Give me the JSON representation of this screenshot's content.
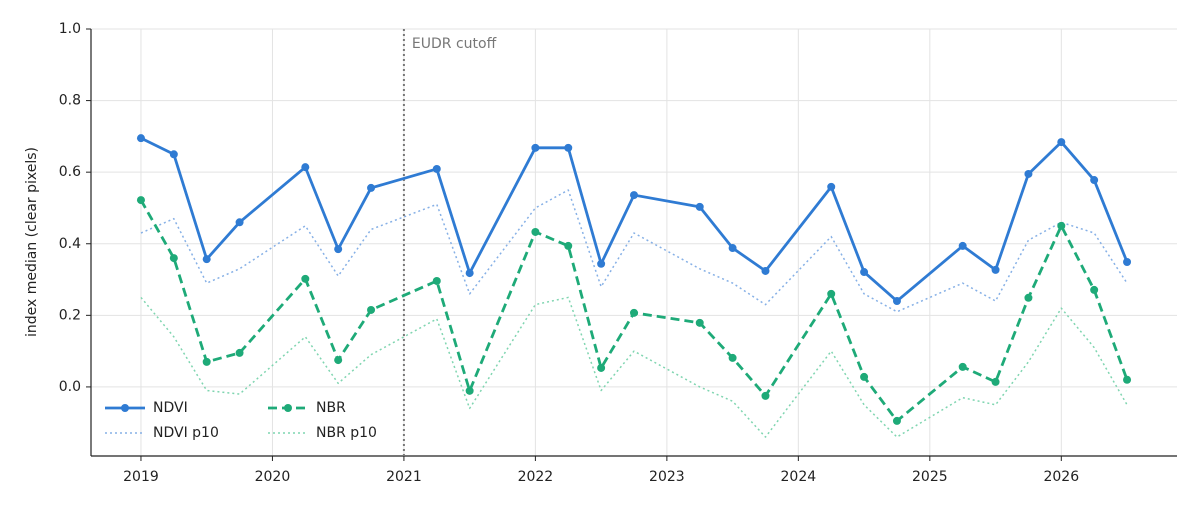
{
  "chart_data": {
    "type": "line",
    "ylabel": "index median (clear pixels)",
    "x": [
      2019,
      2019.25,
      2019.5,
      2019.75,
      2020.25,
      2020.5,
      2020.75,
      2021.25,
      2021.5,
      2022,
      2022.25,
      2022.5,
      2022.75,
      2023.25,
      2023.5,
      2023.75,
      2024.25,
      2024.5,
      2024.75,
      2025.25,
      2025.5,
      2025.75,
      2026,
      2026.25,
      2026.5
    ],
    "xlim": [
      2018.62,
      2026.88
    ],
    "xticks": [
      2019,
      2020,
      2021,
      2022,
      2023,
      2024,
      2025,
      2026
    ],
    "ylim": [
      -0.193,
      1.0
    ],
    "yticks": [
      {
        "value": 0,
        "label": "0.0"
      },
      0.2,
      0.4,
      0.6,
      0.8,
      {
        "value": 1,
        "label": "1.0"
      }
    ],
    "grid": true,
    "legend": "lower left",
    "vline": {
      "x": 2021,
      "label": "EUDR cutoff",
      "color": "#777777"
    },
    "series": [
      {
        "name": "NDVI",
        "color": "#2f7bd3",
        "style": "solid",
        "markers": true,
        "values": [
          0.695,
          0.65,
          0.357,
          0.46,
          0.614,
          0.385,
          0.556,
          0.609,
          0.318,
          0.668,
          0.668,
          0.344,
          0.536,
          0.503,
          0.388,
          0.324,
          0.559,
          0.321,
          0.24,
          0.394,
          0.327,
          0.595,
          0.684,
          0.578,
          0.349
        ]
      },
      {
        "name": "NDVI p10",
        "color": "#86b0e6",
        "style": "dotted",
        "markers": false,
        "values": [
          0.43,
          0.47,
          0.29,
          0.33,
          0.45,
          0.31,
          0.44,
          0.51,
          0.26,
          0.5,
          0.55,
          0.28,
          0.43,
          0.33,
          0.29,
          0.23,
          0.42,
          0.26,
          0.21,
          0.29,
          0.24,
          0.41,
          0.46,
          0.43,
          0.29
        ]
      },
      {
        "name": "NBR",
        "color": "#1eaa78",
        "style": "dashed",
        "markers": true,
        "values": [
          0.522,
          0.36,
          0.07,
          0.095,
          0.302,
          0.075,
          0.215,
          0.296,
          -0.011,
          0.433,
          0.394,
          0.053,
          0.207,
          0.179,
          0.081,
          -0.025,
          0.26,
          0.028,
          -0.095,
          0.056,
          0.014,
          0.249,
          0.45,
          0.271,
          0.02
        ]
      },
      {
        "name": "NBR p10",
        "color": "#7fd5b0",
        "style": "dotted",
        "markers": false,
        "values": [
          0.25,
          0.14,
          -0.01,
          -0.02,
          0.14,
          0.01,
          0.09,
          0.19,
          -0.06,
          0.23,
          0.25,
          -0.01,
          0.1,
          0.0,
          -0.04,
          -0.14,
          0.1,
          -0.05,
          -0.14,
          -0.03,
          -0.05,
          0.07,
          0.22,
          0.11,
          -0.05
        ]
      }
    ]
  }
}
